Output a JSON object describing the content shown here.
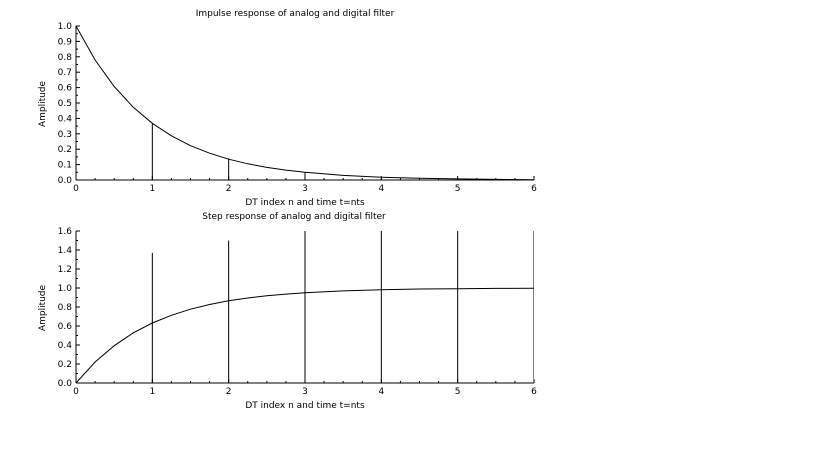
{
  "chart_data": [
    {
      "type": "line",
      "title": "Impulse response of analog and digital filter",
      "xlabel": "DT index n and time t=nts",
      "ylabel": "Amplitude",
      "xlim": [
        0,
        6
      ],
      "ylim": [
        0,
        1.0
      ],
      "x_ticks": [
        "0",
        "1",
        "2",
        "3",
        "4",
        "5",
        "6"
      ],
      "y_ticks": [
        "0.0",
        "0.1",
        "0.2",
        "0.3",
        "0.4",
        "0.5",
        "0.6",
        "0.7",
        "0.8",
        "0.9",
        "1.0"
      ],
      "grid": false,
      "series": [
        {
          "style": "line",
          "x": [
            0,
            0.25,
            0.5,
            0.75,
            1,
            1.25,
            1.5,
            1.75,
            2,
            2.25,
            2.5,
            2.75,
            3,
            3.5,
            4,
            4.5,
            5,
            5.5,
            6
          ],
          "y": [
            1.0,
            0.779,
            0.607,
            0.472,
            0.368,
            0.287,
            0.223,
            0.174,
            0.135,
            0.105,
            0.082,
            0.064,
            0.05,
            0.03,
            0.018,
            0.011,
            0.007,
            0.004,
            0.002
          ]
        },
        {
          "style": "stem",
          "x": [
            1,
            2,
            3,
            4,
            5,
            6
          ],
          "y": [
            0.37,
            0.14,
            0.05,
            0.02,
            0.007,
            0.002
          ]
        }
      ]
    },
    {
      "type": "line",
      "title": "Step response of analog and digital filter",
      "xlabel": "DT index n and time t=nts",
      "ylabel": "Amplitude",
      "xlim": [
        0,
        6
      ],
      "ylim": [
        0,
        1.6
      ],
      "x_ticks": [
        "0",
        "1",
        "2",
        "3",
        "4",
        "5",
        "6"
      ],
      "y_ticks": [
        "0.0",
        "0.2",
        "0.4",
        "0.6",
        "0.8",
        "1.0",
        "1.2",
        "1.4",
        "1.6"
      ],
      "grid": false,
      "series": [
        {
          "style": "line",
          "x": [
            0,
            0.25,
            0.5,
            0.75,
            1,
            1.25,
            1.5,
            1.75,
            2,
            2.25,
            2.5,
            2.75,
            3,
            3.5,
            4,
            4.5,
            5,
            5.5,
            6
          ],
          "y": [
            0,
            0.221,
            0.393,
            0.528,
            0.632,
            0.713,
            0.777,
            0.826,
            0.865,
            0.895,
            0.918,
            0.936,
            0.95,
            0.97,
            0.982,
            0.989,
            0.993,
            0.996,
            0.998
          ]
        },
        {
          "style": "stem",
          "x": [
            1,
            2,
            3,
            4,
            5,
            6
          ],
          "y": [
            1.37,
            1.5,
            1.6,
            1.6,
            1.6,
            1.6
          ]
        }
      ]
    }
  ]
}
